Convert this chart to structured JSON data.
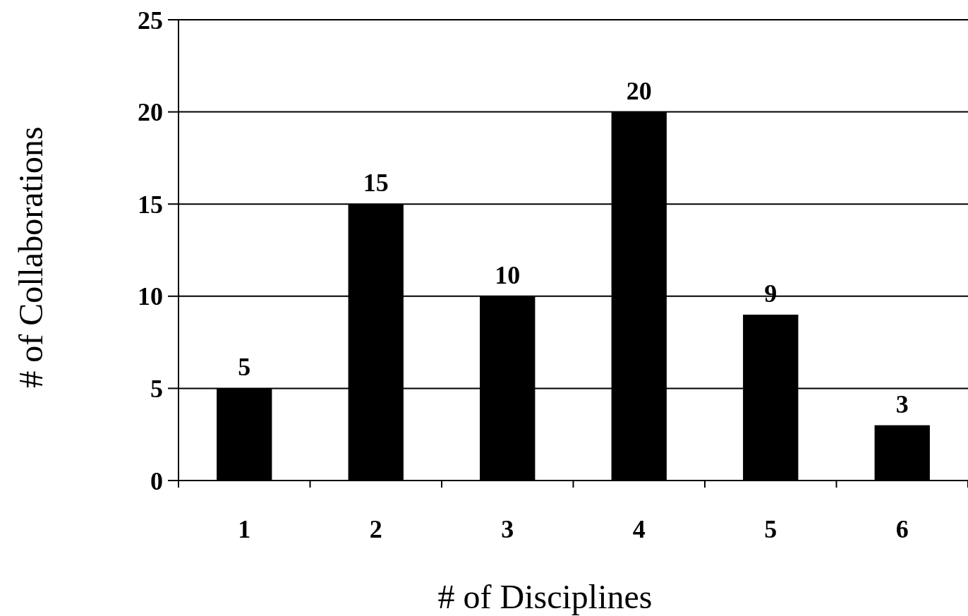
{
  "chart_data": {
    "type": "bar",
    "xlabel": "# of Disciplines",
    "ylabel": "# of Collaborations",
    "categories": [
      "1",
      "2",
      "3",
      "4",
      "5",
      "6"
    ],
    "values": [
      5,
      15,
      10,
      20,
      9,
      3
    ],
    "color": "#000000",
    "ylim": [
      0,
      25
    ],
    "yticks": [
      0,
      5,
      10,
      15,
      20,
      25
    ],
    "grid": "y",
    "data_labels": true
  }
}
